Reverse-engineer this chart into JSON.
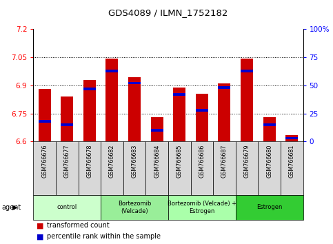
{
  "title": "GDS4089 / ILMN_1752182",
  "samples": [
    "GSM766676",
    "GSM766677",
    "GSM766678",
    "GSM766682",
    "GSM766683",
    "GSM766684",
    "GSM766685",
    "GSM766686",
    "GSM766687",
    "GSM766679",
    "GSM766680",
    "GSM766681"
  ],
  "transformed_counts": [
    6.88,
    6.84,
    6.93,
    7.045,
    6.945,
    6.73,
    6.89,
    6.855,
    6.91,
    7.045,
    6.73,
    6.635
  ],
  "percentile_ranks": [
    18,
    15,
    47,
    63,
    52,
    10,
    42,
    28,
    48,
    63,
    15,
    3
  ],
  "ymin": 6.6,
  "ymax": 7.2,
  "yticks": [
    6.6,
    6.75,
    6.9,
    7.05,
    7.2
  ],
  "ytick_labels": [
    "6.6",
    "6.75",
    "6.9",
    "7.05",
    "7.2"
  ],
  "right_yticks": [
    0,
    25,
    50,
    75,
    100
  ],
  "right_ytick_labels": [
    "0",
    "25",
    "50",
    "75",
    "100%"
  ],
  "bar_color": "#cc0000",
  "percentile_color": "#0000cc",
  "groups": [
    {
      "label": "control",
      "indices": [
        0,
        1,
        2
      ],
      "color": "#ccffcc"
    },
    {
      "label": "Bortezomib\n(Velcade)",
      "indices": [
        3,
        4,
        5
      ],
      "color": "#99ee99"
    },
    {
      "label": "Bortezomib (Velcade) +\nEstrogen",
      "indices": [
        6,
        7,
        8
      ],
      "color": "#aaffaa"
    },
    {
      "label": "Estrogen",
      "indices": [
        9,
        10,
        11
      ],
      "color": "#33cc33"
    }
  ],
  "legend_red": "transformed count",
  "legend_blue": "percentile rank within the sample",
  "bar_width": 0.55,
  "sample_cell_color": "#d8d8d8"
}
